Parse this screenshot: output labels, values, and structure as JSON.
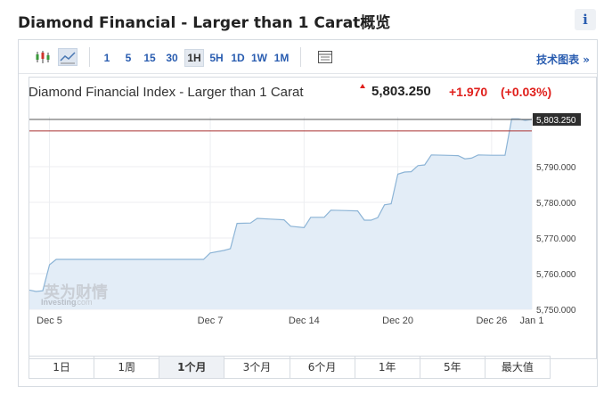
{
  "page": {
    "title": "Diamond Financial - Larger than 1 Carat概览",
    "info_label": "i"
  },
  "toolbar": {
    "timeframes": [
      "1",
      "5",
      "15",
      "30",
      "1H",
      "5H",
      "1D",
      "1W",
      "1M"
    ],
    "active_timeframe": "1H",
    "tech_chart_link": "技术图表 »",
    "icons": [
      "candlestick-chart-icon",
      "area-chart-icon",
      "table-view-icon"
    ]
  },
  "header": {
    "index_name": "Diamond Financial Index - Larger than 1 Carat",
    "price": "5,803.250",
    "change": "+1.970",
    "change_pct": "(+0.03%)",
    "direction": "up"
  },
  "watermark": {
    "chinese": "英为财情",
    "latin": "Investing",
    "suffix": ".com"
  },
  "range_buttons": [
    "1日",
    "1周",
    "1个月",
    "3个月",
    "6个月",
    "1年",
    "5年",
    "最大值"
  ],
  "active_range": "1个月",
  "colors": {
    "line": "#8cb4d6",
    "fill": "#e3edf7",
    "grid": "#eceef1",
    "accent_red": "#e0201c",
    "link_blue": "#2a5db0",
    "price_tag_bg": "#2e2e2e"
  },
  "chart_data": {
    "type": "area",
    "title": "Diamond Financial Index - Larger than 1 Carat",
    "xlabel": "",
    "ylabel": "",
    "x_ticks": [
      "Dec 5",
      "Dec 7",
      "Dec 14",
      "Dec 20",
      "Dec 26",
      "Jan 1"
    ],
    "y_ticks": [
      "5,790.000",
      "5,780.000",
      "5,770.000",
      "5,760.000",
      "5,750.000"
    ],
    "ylim": [
      5750,
      5803.25
    ],
    "last_price_label": "5,803.250",
    "reference_line": 5801.28,
    "grid": true,
    "series": [
      {
        "points": [
          [
            0,
            5755.4
          ],
          [
            1,
            5755
          ],
          [
            2,
            5755.2
          ],
          [
            3,
            5762.5
          ],
          [
            4,
            5764
          ],
          [
            5,
            5764
          ],
          [
            10,
            5764
          ],
          [
            22,
            5764
          ],
          [
            26,
            5764
          ],
          [
            27,
            5765.8
          ],
          [
            29,
            5766.5
          ],
          [
            30,
            5767
          ],
          [
            31,
            5774.1
          ],
          [
            33,
            5774.2
          ],
          [
            34,
            5775.5
          ],
          [
            36,
            5775.3
          ],
          [
            38,
            5775.1
          ],
          [
            39,
            5773.3
          ],
          [
            41,
            5772.9
          ],
          [
            42,
            5775.8
          ],
          [
            44,
            5775.8
          ],
          [
            45,
            5777.8
          ],
          [
            47,
            5777.7
          ],
          [
            49,
            5777.6
          ],
          [
            50,
            5775
          ],
          [
            51,
            5775
          ],
          [
            52,
            5775.7
          ],
          [
            53,
            5779.3
          ],
          [
            54,
            5779.6
          ],
          [
            55,
            5787.9
          ],
          [
            56,
            5788.5
          ],
          [
            57,
            5788.6
          ],
          [
            58,
            5790.3
          ],
          [
            59,
            5790.5
          ],
          [
            60,
            5793.3
          ],
          [
            62,
            5793.2
          ],
          [
            64,
            5793.1
          ],
          [
            65,
            5792.2
          ],
          [
            66,
            5792.4
          ],
          [
            67,
            5793.3
          ],
          [
            69,
            5793.2
          ],
          [
            71,
            5793.2
          ],
          [
            72,
            5803.4
          ],
          [
            73,
            5803.4
          ],
          [
            74,
            5803.0
          ],
          [
            75,
            5803.25
          ]
        ],
        "x_tick_positions": [
          3,
          27,
          41,
          55,
          69,
          75
        ]
      }
    ]
  }
}
